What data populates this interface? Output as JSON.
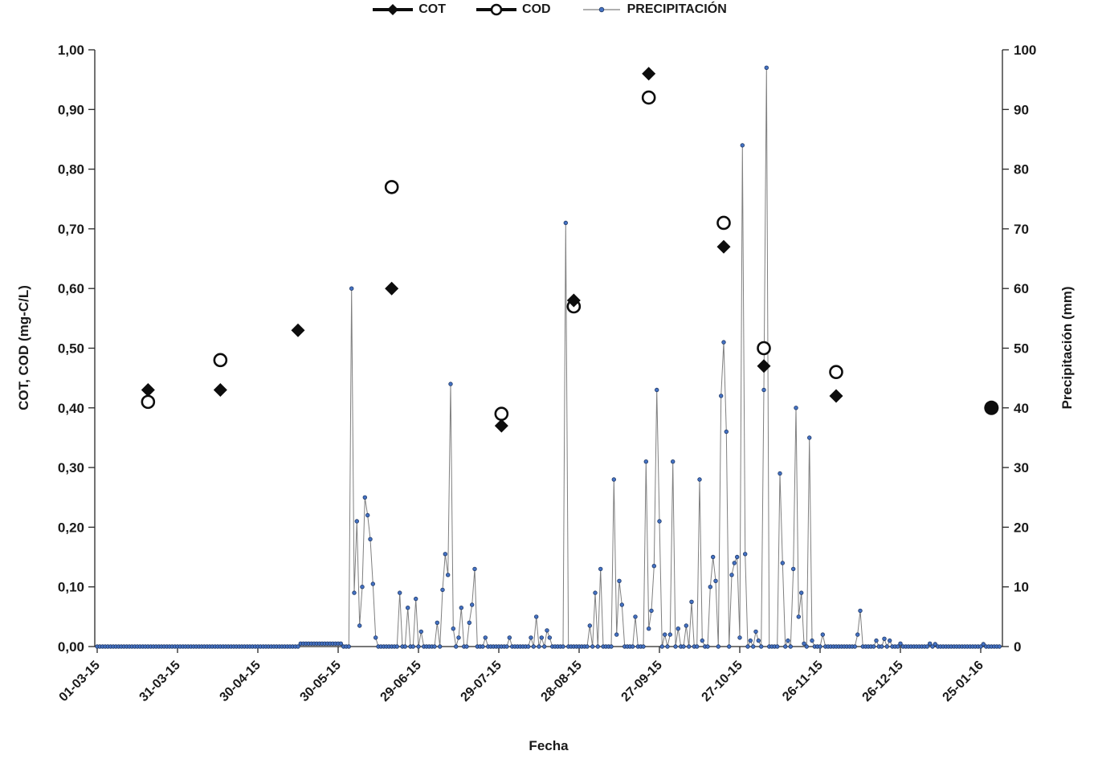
{
  "colors": {
    "marker_black": "#0d0d0d",
    "precip_dot_fill": "#4472C4",
    "precip_dot_edge": "#203864",
    "precip_line": "#7f7f7f",
    "axis_line": "#262626",
    "text": "#1a1a1a"
  },
  "legend": {
    "items": [
      {
        "label": "COT",
        "marker": "filled-diamond"
      },
      {
        "label": "COD",
        "marker": "open-circle"
      },
      {
        "label": "PRECIPITACIÓN",
        "marker": "dot-line"
      }
    ]
  },
  "chart_data": {
    "type": "line",
    "title": "",
    "xlabel": "Fecha",
    "ylabel_left": "COT, COD (mg-C/L)",
    "ylabel_right": "Precipitación (mm)",
    "grid": false,
    "legend_position": "top-center",
    "x_tick_labels": [
      "01-03-15",
      "31-03-15",
      "30-04-15",
      "30-05-15",
      "29-06-15",
      "29-07-15",
      "28-08-15",
      "27-09-15",
      "27-10-15",
      "26-11-15",
      "26-12-15",
      "25-01-16"
    ],
    "x_tick_days": [
      0,
      30,
      60,
      90,
      120,
      150,
      180,
      210,
      240,
      270,
      300,
      330
    ],
    "x_days_total": 338,
    "y_left": {
      "min": 0,
      "max": 1,
      "step": 0.1,
      "tick_labels": [
        "0,00",
        "0,10",
        "0,20",
        "0,30",
        "0,40",
        "0,50",
        "0,60",
        "0,70",
        "0,80",
        "0,90",
        "1,00"
      ]
    },
    "y_right": {
      "min": 0,
      "max": 100,
      "step": 10,
      "tick_labels": [
        "0",
        "10",
        "20",
        "30",
        "40",
        "50",
        "60",
        "70",
        "80",
        "90",
        "100"
      ]
    },
    "series": [
      {
        "name": "COT",
        "axis": "left",
        "type": "scatter",
        "marker": "filled-diamond",
        "color": "#0d0d0d",
        "points": [
          {
            "date": "20-03-15",
            "day": 19,
            "value": 0.43
          },
          {
            "date": "16-04-15",
            "day": 46,
            "value": 0.43
          },
          {
            "date": "15-05-15",
            "day": 75,
            "value": 0.53
          },
          {
            "date": "19-06-15",
            "day": 110,
            "value": 0.6
          },
          {
            "date": "30-07-15",
            "day": 151,
            "value": 0.37
          },
          {
            "date": "26-08-15",
            "day": 178,
            "value": 0.58
          },
          {
            "date": "23-09-15",
            "day": 206,
            "value": 0.96
          },
          {
            "date": "21-10-15",
            "day": 234,
            "value": 0.67
          },
          {
            "date": "05-11-15",
            "day": 249,
            "value": 0.47
          },
          {
            "date": "02-12-15",
            "day": 276,
            "value": 0.42
          },
          {
            "date": "29-01-16",
            "day": 334,
            "value": 0.4
          }
        ]
      },
      {
        "name": "COD",
        "axis": "left",
        "type": "scatter",
        "marker": "open-circle",
        "color": "#0d0d0d",
        "points": [
          {
            "date": "20-03-15",
            "day": 19,
            "value": 0.41
          },
          {
            "date": "16-04-15",
            "day": 46,
            "value": 0.48
          },
          {
            "date": "19-06-15",
            "day": 110,
            "value": 0.77
          },
          {
            "date": "30-07-15",
            "day": 151,
            "value": 0.39
          },
          {
            "date": "26-08-15",
            "day": 178,
            "value": 0.57
          },
          {
            "date": "23-09-15",
            "day": 206,
            "value": 0.92
          },
          {
            "date": "21-10-15",
            "day": 234,
            "value": 0.71
          },
          {
            "date": "05-11-15",
            "day": 249,
            "value": 0.5
          },
          {
            "date": "02-12-15",
            "day": 276,
            "value": 0.46
          },
          {
            "date": "29-01-16",
            "day": 334,
            "value": 0.4,
            "filled": true
          }
        ]
      },
      {
        "name": "PRECIPITACIÓN",
        "axis": "right",
        "type": "line",
        "marker": "dot",
        "unit": "mm",
        "color": "#4472C4",
        "line_color": "#7f7f7f",
        "baseline_days": 338,
        "nonzero_points": [
          [
            76,
            0.5
          ],
          [
            77,
            0.5
          ],
          [
            78,
            0.5
          ],
          [
            79,
            0.5
          ],
          [
            80,
            0.5
          ],
          [
            81,
            0.5
          ],
          [
            82,
            0.5
          ],
          [
            83,
            0.5
          ],
          [
            84,
            0.5
          ],
          [
            85,
            0.5
          ],
          [
            86,
            0.5
          ],
          [
            87,
            0.5
          ],
          [
            88,
            0.5
          ],
          [
            89,
            0.5
          ],
          [
            90,
            0.5
          ],
          [
            91,
            0.5
          ],
          [
            95,
            60
          ],
          [
            96,
            9
          ],
          [
            97,
            21
          ],
          [
            98,
            3.5
          ],
          [
            99,
            10
          ],
          [
            100,
            25
          ],
          [
            101,
            22
          ],
          [
            102,
            18
          ],
          [
            103,
            10.5
          ],
          [
            104,
            1.5
          ],
          [
            113,
            9
          ],
          [
            116,
            6.5
          ],
          [
            119,
            8
          ],
          [
            121,
            2.5
          ],
          [
            127,
            4
          ],
          [
            129,
            9.5
          ],
          [
            130,
            15.5
          ],
          [
            131,
            12
          ],
          [
            132,
            44
          ],
          [
            133,
            3
          ],
          [
            135,
            1.5
          ],
          [
            136,
            6.5
          ],
          [
            139,
            4
          ],
          [
            140,
            7
          ],
          [
            141,
            13
          ],
          [
            145,
            1.5
          ],
          [
            154,
            1.5
          ],
          [
            162,
            1.5
          ],
          [
            164,
            5
          ],
          [
            166,
            1.5
          ],
          [
            168,
            2.7
          ],
          [
            169,
            1.5
          ],
          [
            175,
            71
          ],
          [
            184,
            3.5
          ],
          [
            186,
            9
          ],
          [
            188,
            13
          ],
          [
            193,
            28
          ],
          [
            194,
            2
          ],
          [
            195,
            11
          ],
          [
            196,
            7
          ],
          [
            201,
            5
          ],
          [
            205,
            31
          ],
          [
            206,
            3
          ],
          [
            207,
            6
          ],
          [
            208,
            13.5
          ],
          [
            209,
            43
          ],
          [
            210,
            21
          ],
          [
            212,
            2
          ],
          [
            214,
            2
          ],
          [
            215,
            31
          ],
          [
            217,
            3
          ],
          [
            220,
            3.5
          ],
          [
            222,
            7.5
          ],
          [
            225,
            28
          ],
          [
            226,
            1
          ],
          [
            229,
            10
          ],
          [
            230,
            15
          ],
          [
            231,
            11
          ],
          [
            233,
            42
          ],
          [
            234,
            51
          ],
          [
            235,
            36
          ],
          [
            237,
            12
          ],
          [
            238,
            14
          ],
          [
            239,
            15
          ],
          [
            240,
            1.5
          ],
          [
            241,
            84
          ],
          [
            242,
            15.5
          ],
          [
            244,
            1
          ],
          [
            246,
            2.5
          ],
          [
            247,
            1
          ],
          [
            249,
            43
          ],
          [
            250,
            97
          ],
          [
            255,
            29
          ],
          [
            256,
            14
          ],
          [
            258,
            1
          ],
          [
            260,
            13
          ],
          [
            261,
            40
          ],
          [
            262,
            5
          ],
          [
            263,
            9
          ],
          [
            264,
            0.5
          ],
          [
            266,
            35
          ],
          [
            267,
            1
          ],
          [
            271,
            2
          ],
          [
            284,
            2
          ],
          [
            285,
            6
          ],
          [
            291,
            1
          ],
          [
            294,
            1.3
          ],
          [
            296,
            1
          ],
          [
            300,
            0.5
          ],
          [
            311,
            0.5
          ],
          [
            313,
            0.4
          ],
          [
            331,
            0.4
          ]
        ]
      }
    ]
  }
}
